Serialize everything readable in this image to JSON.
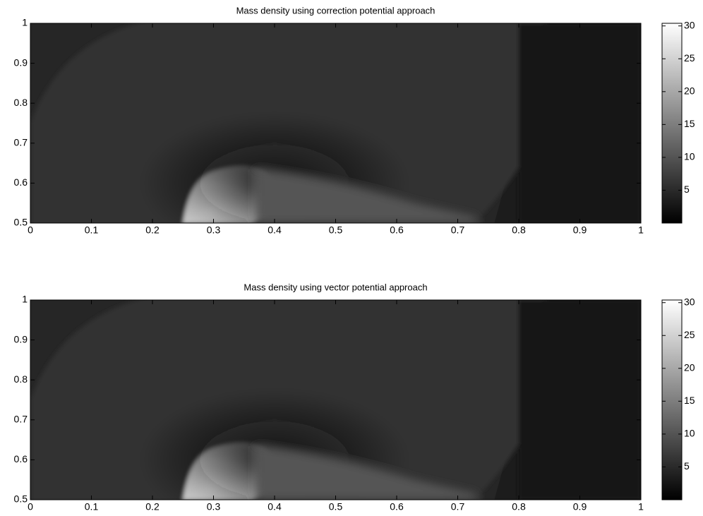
{
  "chart_data": [
    {
      "type": "heatmap",
      "title": "Mass density using correction potential approach",
      "xlim": [
        0,
        1
      ],
      "ylim": [
        0.5,
        1
      ],
      "xticks": [
        0,
        0.1,
        0.2,
        0.3,
        0.4,
        0.5,
        0.6,
        0.7,
        0.8,
        0.9,
        1
      ],
      "yticks": [
        0.5,
        0.6,
        0.7,
        0.8,
        0.9,
        1
      ],
      "colormap": "gray",
      "clim": [
        0,
        30.4
      ],
      "colorbar_ticks": [
        5,
        10,
        15,
        20,
        25,
        30
      ]
    },
    {
      "type": "heatmap",
      "title": "Mass density using vector potential approach",
      "xlim": [
        0,
        1
      ],
      "ylim": [
        0.5,
        1
      ],
      "xticks": [
        0,
        0.1,
        0.2,
        0.3,
        0.4,
        0.5,
        0.6,
        0.7,
        0.8,
        0.9,
        1
      ],
      "yticks": [
        0.5,
        0.6,
        0.7,
        0.8,
        0.9,
        1
      ],
      "colormap": "gray",
      "clim": [
        0,
        30.4
      ],
      "colorbar_ticks": [
        5,
        10,
        15,
        20,
        25,
        30
      ]
    }
  ]
}
